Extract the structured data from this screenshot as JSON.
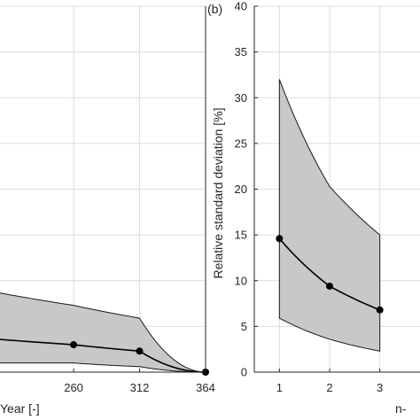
{
  "chart_data": [
    {
      "type": "area",
      "panel_label": "",
      "xlabel": "Year [-]",
      "ylabel": "",
      "x_ticks": [
        "260",
        "312",
        "364"
      ],
      "y_ticks": [],
      "xlim": [
        195,
        364
      ],
      "ylim": [
        0,
        40
      ],
      "grid": true,
      "x": [
        200,
        260,
        312,
        364
      ],
      "series": [
        {
          "role": "mean",
          "values": [
            3.6,
            3.0,
            2.3,
            0.0
          ]
        },
        {
          "role": "upper",
          "values": [
            8.7,
            7.3,
            5.9,
            0.0
          ]
        },
        {
          "role": "lower",
          "values": [
            1.0,
            1.0,
            0.6,
            0.0
          ]
        }
      ],
      "markers_at_x": [
        260,
        312,
        364
      ]
    },
    {
      "type": "area",
      "panel_label": "(b)",
      "xlabel": "n-",
      "ylabel": "Relative standard deviation [%]",
      "x_ticks": [
        "1",
        "2",
        "3"
      ],
      "y_ticks": [
        "0",
        "5",
        "10",
        "15",
        "20",
        "25",
        "30",
        "35",
        "40"
      ],
      "xlim": [
        0.5,
        3.8
      ],
      "ylim": [
        0,
        40
      ],
      "grid": true,
      "x": [
        1,
        2,
        3
      ],
      "series": [
        {
          "role": "mean",
          "values": [
            14.6,
            9.4,
            6.8
          ]
        },
        {
          "role": "upper",
          "values": [
            32.0,
            20.3,
            15.0
          ]
        },
        {
          "role": "lower",
          "values": [
            5.9,
            3.6,
            2.3
          ]
        }
      ],
      "markers_at_x": [
        1,
        2,
        3
      ]
    }
  ]
}
